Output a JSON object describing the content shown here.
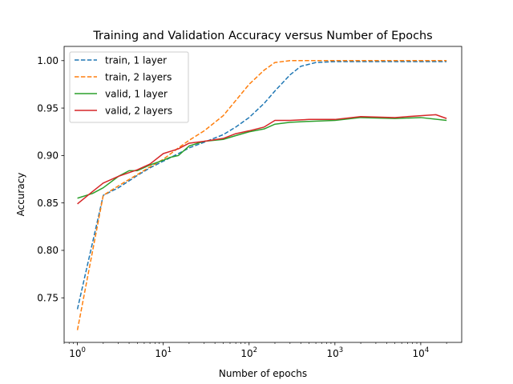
{
  "chart_data": {
    "type": "line",
    "title": "Training and Validation Accuracy versus Number of Epochs",
    "xlabel": "Number of epochs",
    "ylabel": "Accuracy",
    "xscale": "log",
    "xlim": [
      0.7,
      30000
    ],
    "ylim": [
      0.703,
      1.015
    ],
    "x_ticks": [
      {
        "value": 1,
        "base": "10",
        "exp": "0"
      },
      {
        "value": 10,
        "base": "10",
        "exp": "1"
      },
      {
        "value": 100,
        "base": "10",
        "exp": "2"
      },
      {
        "value": 1000,
        "base": "10",
        "exp": "3"
      },
      {
        "value": 10000,
        "base": "10",
        "exp": "4"
      }
    ],
    "y_ticks": [
      {
        "value": 0.75,
        "label": "0.75"
      },
      {
        "value": 0.8,
        "label": "0.80"
      },
      {
        "value": 0.85,
        "label": "0.85"
      },
      {
        "value": 0.9,
        "label": "0.90"
      },
      {
        "value": 0.95,
        "label": "0.95"
      },
      {
        "value": 1.0,
        "label": "1.00"
      }
    ],
    "grid": false,
    "legend_position": "top-left",
    "series": [
      {
        "name": "train, 1 layer",
        "color": "#1f77b4",
        "style": "dashed",
        "points": [
          [
            1,
            0.738
          ],
          [
            2,
            0.858
          ],
          [
            3,
            0.866
          ],
          [
            5,
            0.879
          ],
          [
            7,
            0.887
          ],
          [
            10,
            0.894
          ],
          [
            15,
            0.902
          ],
          [
            20,
            0.908
          ],
          [
            30,
            0.914
          ],
          [
            50,
            0.922
          ],
          [
            70,
            0.93
          ],
          [
            100,
            0.94
          ],
          [
            150,
            0.955
          ],
          [
            200,
            0.968
          ],
          [
            300,
            0.985
          ],
          [
            400,
            0.994
          ],
          [
            600,
            0.998
          ],
          [
            1000,
            0.999
          ],
          [
            20000,
            0.999
          ]
        ]
      },
      {
        "name": "train, 2 layers",
        "color": "#ff7f0e",
        "style": "dashed",
        "points": [
          [
            1,
            0.716
          ],
          [
            2,
            0.858
          ],
          [
            3,
            0.868
          ],
          [
            5,
            0.88
          ],
          [
            7,
            0.888
          ],
          [
            10,
            0.896
          ],
          [
            15,
            0.908
          ],
          [
            20,
            0.916
          ],
          [
            30,
            0.926
          ],
          [
            50,
            0.942
          ],
          [
            70,
            0.958
          ],
          [
            100,
            0.975
          ],
          [
            150,
            0.99
          ],
          [
            200,
            0.998
          ],
          [
            300,
            1.0
          ],
          [
            20000,
            1.0
          ]
        ]
      },
      {
        "name": "valid, 1 layer",
        "color": "#2ca02c",
        "style": "solid",
        "points": [
          [
            1,
            0.855
          ],
          [
            1.5,
            0.86
          ],
          [
            2,
            0.866
          ],
          [
            3,
            0.878
          ],
          [
            4,
            0.884
          ],
          [
            5,
            0.884
          ],
          [
            7,
            0.89
          ],
          [
            10,
            0.895
          ],
          [
            12,
            0.898
          ],
          [
            15,
            0.9
          ],
          [
            20,
            0.91
          ],
          [
            30,
            0.915
          ],
          [
            50,
            0.917
          ],
          [
            70,
            0.921
          ],
          [
            100,
            0.925
          ],
          [
            150,
            0.928
          ],
          [
            200,
            0.933
          ],
          [
            300,
            0.935
          ],
          [
            500,
            0.936
          ],
          [
            1000,
            0.937
          ],
          [
            2000,
            0.94
          ],
          [
            5000,
            0.939
          ],
          [
            10000,
            0.94
          ],
          [
            20000,
            0.937
          ]
        ]
      },
      {
        "name": "valid, 2 layers",
        "color": "#d62728",
        "style": "solid",
        "points": [
          [
            1,
            0.849
          ],
          [
            1.5,
            0.862
          ],
          [
            2,
            0.871
          ],
          [
            3,
            0.878
          ],
          [
            5,
            0.885
          ],
          [
            7,
            0.891
          ],
          [
            10,
            0.902
          ],
          [
            15,
            0.907
          ],
          [
            20,
            0.913
          ],
          [
            30,
            0.915
          ],
          [
            50,
            0.918
          ],
          [
            70,
            0.923
          ],
          [
            100,
            0.926
          ],
          [
            150,
            0.93
          ],
          [
            200,
            0.937
          ],
          [
            300,
            0.937
          ],
          [
            500,
            0.938
          ],
          [
            1000,
            0.938
          ],
          [
            2000,
            0.941
          ],
          [
            5000,
            0.94
          ],
          [
            10000,
            0.942
          ],
          [
            15000,
            0.943
          ],
          [
            20000,
            0.939
          ]
        ]
      }
    ]
  }
}
